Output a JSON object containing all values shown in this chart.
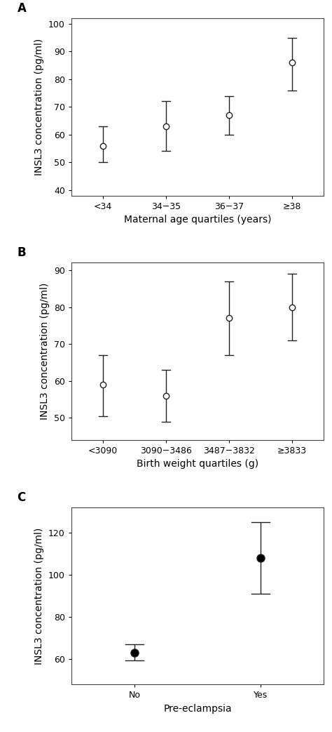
{
  "panel_A": {
    "label": "A",
    "categories": [
      "<34",
      "34−35",
      "36−37",
      "≥38"
    ],
    "means": [
      56,
      63,
      67,
      86
    ],
    "ci_low": [
      50,
      54,
      60,
      76
    ],
    "ci_high": [
      63,
      72,
      74,
      95
    ],
    "ylabel": "INSL3 concentration (pg/ml)",
    "xlabel": "Maternal age quartiles (years)",
    "ylim": [
      38,
      102
    ],
    "yticks": [
      40,
      50,
      60,
      70,
      80,
      90,
      100
    ],
    "marker_fill": "white",
    "marker_size": 6
  },
  "panel_B": {
    "label": "B",
    "categories": [
      "<3090",
      "3090−3486",
      "3487−3832",
      "≥3833"
    ],
    "means": [
      59,
      56,
      77,
      80
    ],
    "ci_low": [
      50.5,
      49,
      67,
      71
    ],
    "ci_high": [
      67,
      63,
      87,
      89
    ],
    "ylabel": "INSL3 concentration (pg/ml)",
    "xlabel": "Birth weight quartiles (g)",
    "ylim": [
      44,
      92
    ],
    "yticks": [
      50,
      60,
      70,
      80,
      90
    ],
    "marker_fill": "white",
    "marker_size": 6
  },
  "panel_C": {
    "label": "C",
    "categories": [
      "No",
      "Yes"
    ],
    "means": [
      63,
      108
    ],
    "ci_low": [
      59.5,
      91
    ],
    "ci_high": [
      67,
      125
    ],
    "ylabel": "INSL3 concentration (pg/ml)",
    "xlabel": "Pre-eclampsia",
    "ylim": [
      48,
      132
    ],
    "yticks": [
      60,
      80,
      100,
      120
    ],
    "marker_fill": "black",
    "marker_size": 8
  },
  "figure_bg": "#ffffff",
  "line_color": "#222222",
  "font_size_label": 10,
  "font_size_tick": 9,
  "font_size_panel": 12
}
